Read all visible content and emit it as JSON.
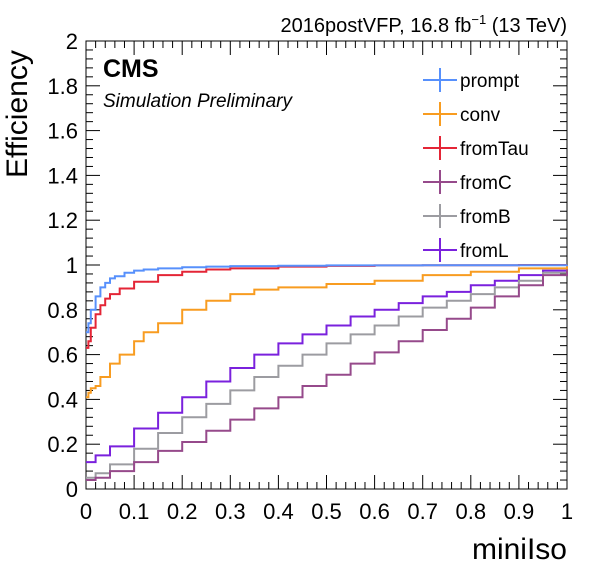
{
  "header": {
    "lumi_prefix": "2016postVFP, 16.8 fb",
    "lumi_exp": "−1",
    "lumi_suffix": " (13 TeV)"
  },
  "labels": {
    "cms": "CMS",
    "simulation": "Simulation Preliminary"
  },
  "chart_data": {
    "type": "line",
    "xlabel": "miniIso",
    "ylabel": "Efficiency",
    "xlim": [
      0,
      1
    ],
    "ylim": [
      0,
      2
    ],
    "xticks": [
      "0",
      "0.1",
      "0.2",
      "0.3",
      "0.4",
      "0.5",
      "0.6",
      "0.7",
      "0.8",
      "0.9",
      "1"
    ],
    "yticks": [
      "0",
      "0.2",
      "0.4",
      "0.6",
      "0.8",
      "1",
      "1.2",
      "1.4",
      "1.6",
      "1.8",
      "2"
    ],
    "legend_position": "top-right",
    "series": [
      {
        "name": "prompt",
        "color": "#5790fc",
        "x": [
          0,
          0.005,
          0.01,
          0.02,
          0.03,
          0.04,
          0.05,
          0.06,
          0.08,
          0.1,
          0.12,
          0.15,
          0.2,
          0.25,
          0.3,
          0.4,
          0.5,
          0.7,
          1.0
        ],
        "y": [
          0.7,
          0.74,
          0.8,
          0.86,
          0.9,
          0.92,
          0.94,
          0.95,
          0.965,
          0.975,
          0.98,
          0.985,
          0.99,
          0.993,
          0.995,
          0.997,
          0.998,
          0.999,
          1.0
        ]
      },
      {
        "name": "conv",
        "color": "#f89c20",
        "x": [
          0,
          0.005,
          0.01,
          0.02,
          0.03,
          0.05,
          0.07,
          0.1,
          0.12,
          0.15,
          0.2,
          0.25,
          0.3,
          0.35,
          0.4,
          0.5,
          0.6,
          0.7,
          0.8,
          0.9,
          1.0
        ],
        "y": [
          0.41,
          0.43,
          0.45,
          0.46,
          0.5,
          0.56,
          0.6,
          0.66,
          0.7,
          0.74,
          0.8,
          0.84,
          0.87,
          0.89,
          0.9,
          0.915,
          0.93,
          0.955,
          0.97,
          0.985,
          1.0
        ]
      },
      {
        "name": "fromTau",
        "color": "#e42536",
        "x": [
          0,
          0.005,
          0.01,
          0.02,
          0.03,
          0.04,
          0.05,
          0.07,
          0.1,
          0.15,
          0.2,
          0.25,
          0.3,
          0.4,
          0.5,
          0.6,
          0.7,
          0.8,
          0.9,
          1.0
        ],
        "y": [
          0.63,
          0.66,
          0.72,
          0.78,
          0.82,
          0.85,
          0.87,
          0.895,
          0.925,
          0.955,
          0.97,
          0.98,
          0.985,
          0.993,
          0.996,
          0.998,
          0.999,
          0.999,
          1.0,
          1.0
        ]
      },
      {
        "name": "fromC",
        "color": "#964a8b",
        "x": [
          0,
          0.02,
          0.05,
          0.1,
          0.15,
          0.2,
          0.25,
          0.3,
          0.35,
          0.4,
          0.45,
          0.5,
          0.55,
          0.6,
          0.65,
          0.7,
          0.75,
          0.8,
          0.85,
          0.9,
          0.95,
          1.0
        ],
        "y": [
          0.04,
          0.05,
          0.08,
          0.12,
          0.17,
          0.21,
          0.26,
          0.31,
          0.36,
          0.41,
          0.46,
          0.51,
          0.56,
          0.61,
          0.66,
          0.71,
          0.76,
          0.81,
          0.86,
          0.91,
          0.955,
          1.0
        ]
      },
      {
        "name": "fromB",
        "color": "#9c9ca1",
        "x": [
          0,
          0.02,
          0.05,
          0.1,
          0.15,
          0.2,
          0.25,
          0.3,
          0.35,
          0.4,
          0.45,
          0.5,
          0.55,
          0.6,
          0.65,
          0.7,
          0.75,
          0.8,
          0.85,
          0.9,
          0.95,
          1.0
        ],
        "y": [
          0.05,
          0.07,
          0.11,
          0.18,
          0.25,
          0.32,
          0.38,
          0.44,
          0.5,
          0.55,
          0.6,
          0.65,
          0.69,
          0.73,
          0.77,
          0.81,
          0.84,
          0.87,
          0.9,
          0.93,
          0.965,
          1.0
        ]
      },
      {
        "name": "fromL",
        "color": "#7a21dd",
        "x": [
          0,
          0.02,
          0.05,
          0.1,
          0.15,
          0.2,
          0.25,
          0.3,
          0.35,
          0.4,
          0.45,
          0.5,
          0.55,
          0.6,
          0.65,
          0.7,
          0.75,
          0.8,
          0.85,
          0.9,
          0.95,
          1.0
        ],
        "y": [
          0.12,
          0.15,
          0.19,
          0.27,
          0.34,
          0.41,
          0.48,
          0.54,
          0.6,
          0.65,
          0.69,
          0.73,
          0.77,
          0.8,
          0.83,
          0.86,
          0.88,
          0.91,
          0.93,
          0.955,
          0.975,
          1.0
        ]
      }
    ]
  }
}
